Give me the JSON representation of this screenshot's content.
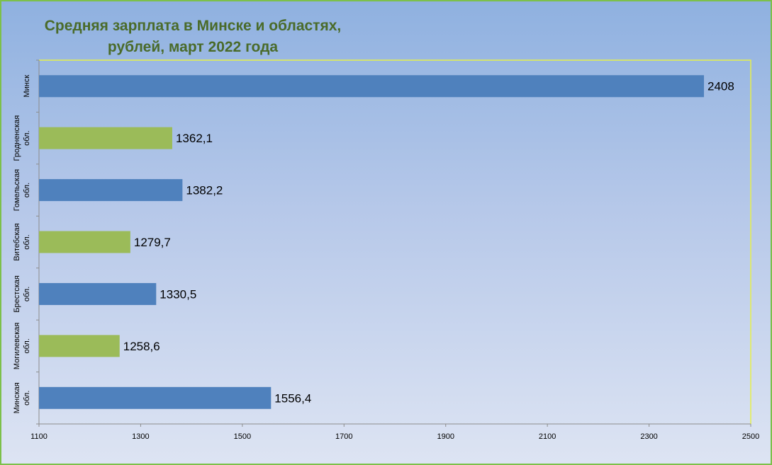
{
  "chart_data": {
    "type": "bar",
    "orientation": "horizontal",
    "title_lines": [
      "Средняя зарплата в Минске и областях,",
      "рублей, март 2022 года"
    ],
    "categories": [
      [
        "Минск"
      ],
      [
        "Гродненская",
        "обл."
      ],
      [
        "Гомельская",
        "обл."
      ],
      [
        "Витебская",
        "обл."
      ],
      [
        "Брестская",
        "обл."
      ],
      [
        "Могилевская",
        "обл."
      ],
      [
        "Минская",
        "обл."
      ]
    ],
    "values": [
      2408,
      1362.1,
      1382.2,
      1279.7,
      1330.5,
      1258.6,
      1556.4
    ],
    "value_labels": [
      "2408",
      "1362,1",
      "1382,2",
      "1279,7",
      "1330,5",
      "1258,6",
      "1556,4"
    ],
    "bar_colors": [
      "#4f81bd",
      "#9bbb59",
      "#4f81bd",
      "#9bbb59",
      "#4f81bd",
      "#9bbb59",
      "#4f81bd"
    ],
    "xlim": [
      1100,
      2500
    ],
    "x_ticks": [
      1100,
      1300,
      1500,
      1700,
      1900,
      2100,
      2300,
      2500
    ],
    "grid": false,
    "legend": "none"
  }
}
